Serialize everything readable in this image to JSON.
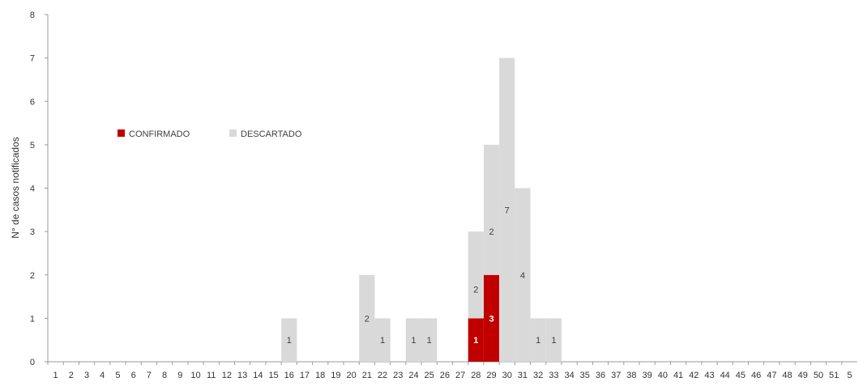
{
  "chart_data": {
    "type": "bar",
    "stacked": true,
    "ylabel": "N° de casos notificados",
    "xlabel": "",
    "ylim": [
      0,
      8
    ],
    "y_ticks": [
      "0",
      "1",
      "2",
      "3",
      "4",
      "5",
      "6",
      "7",
      "8"
    ],
    "x_tick_labels": [
      "1",
      "2",
      "3",
      "4",
      "5",
      "6",
      "7",
      "8",
      "9",
      "10",
      "11",
      "12",
      "13",
      "14",
      "15",
      "16",
      "17",
      "18",
      "19",
      "20",
      "21",
      "22",
      "23",
      "24",
      "25",
      "26",
      "27",
      "28",
      "29",
      "30",
      "31",
      "32",
      "33",
      "34",
      "35",
      "36",
      "37",
      "38",
      "39",
      "40",
      "41",
      "42",
      "43",
      "44",
      "45",
      "46",
      "47",
      "48",
      "49",
      "50",
      "51",
      "5"
    ],
    "legend": {
      "placement": "center-left",
      "items": [
        {
          "label": "CONFIRMADO",
          "color": "#c00000"
        },
        {
          "label": "DESCARTADO",
          "color": "#d9d9d9"
        }
      ]
    },
    "series": [
      {
        "name": "CONFIRMADO",
        "color": "#c00000",
        "points": [
          {
            "x": 28,
            "value": 1
          },
          {
            "x": 29,
            "value": 2
          }
        ]
      },
      {
        "name": "DESCARTADO",
        "color": "#d9d9d9",
        "points": [
          {
            "x": 16,
            "value": 1
          },
          {
            "x": 21,
            "value": 2
          },
          {
            "x": 22,
            "value": 1
          },
          {
            "x": 24,
            "value": 1
          },
          {
            "x": 25,
            "value": 1
          },
          {
            "x": 28,
            "value": 2
          },
          {
            "x": 29,
            "value": 3
          },
          {
            "x": 30,
            "value": 7
          },
          {
            "x": 31,
            "value": 4
          },
          {
            "x": 32,
            "value": 1
          },
          {
            "x": 33,
            "value": 1
          }
        ]
      }
    ],
    "data_labels": [
      {
        "x": 16,
        "text": "1"
      },
      {
        "x": 21,
        "text": "2"
      },
      {
        "x": 22,
        "text": "1"
      },
      {
        "x": 24,
        "text": "1"
      },
      {
        "x": 25,
        "text": "1"
      },
      {
        "x": 28,
        "text": "2"
      },
      {
        "x": 28,
        "text": "1"
      },
      {
        "x": 29,
        "text": "2"
      },
      {
        "x": 29,
        "text": "3"
      },
      {
        "x": 30,
        "text": "7"
      },
      {
        "x": 31,
        "text": "4"
      },
      {
        "x": 32,
        "text": "1"
      },
      {
        "x": 33,
        "text": "1"
      }
    ]
  }
}
